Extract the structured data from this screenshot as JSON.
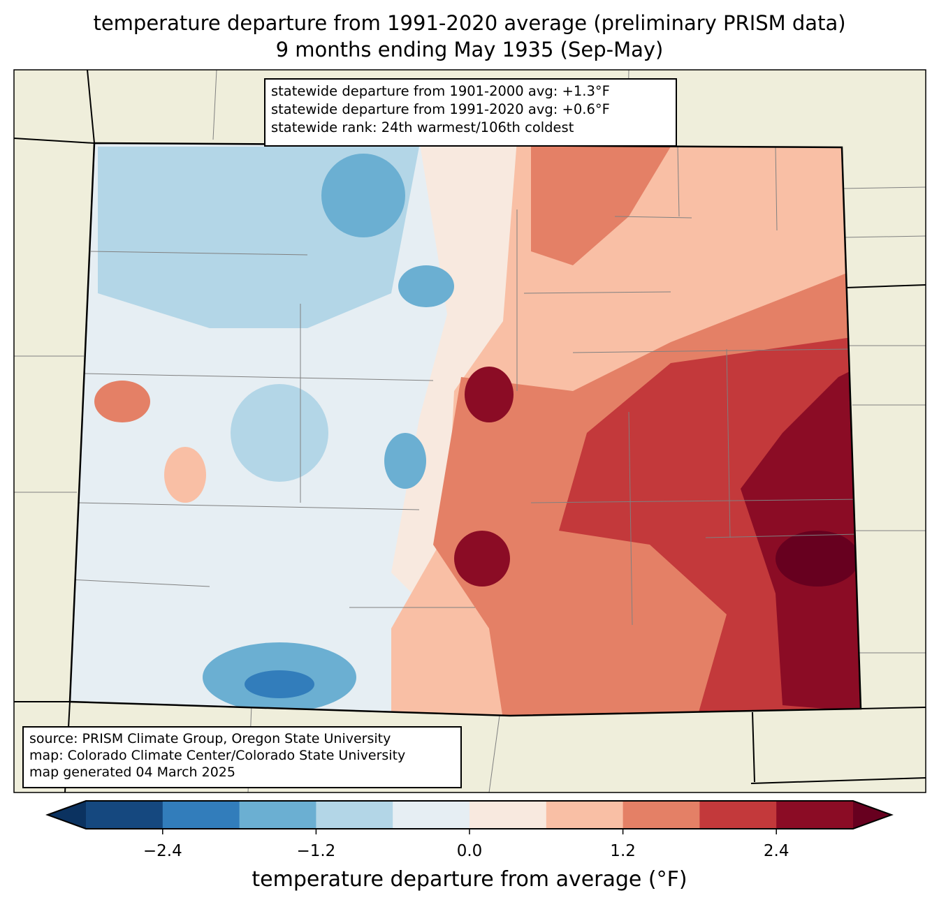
{
  "title": {
    "line1": "temperature departure from 1991-2020 average (preliminary PRISM data)",
    "line2": "9 months ending May 1935 (Sep-May)"
  },
  "info_box": {
    "line1": "statewide departure from 1901-2000 avg: +1.3°F",
    "line2": "statewide departure from 1991-2020 avg: +0.6°F",
    "line3": "statewide rank: 24th warmest/106th coldest"
  },
  "source_box": {
    "line1": "source: PRISM Climate Group, Oregon State University",
    "line2": "map: Colorado Climate Center/Colorado State University",
    "line3": "map generated 04 March 2025"
  },
  "colorbar": {
    "label": "temperature departure from average (°F)",
    "levels": [
      -3.0,
      -2.4,
      -1.8,
      -1.2,
      -0.6,
      0.0,
      0.6,
      1.2,
      1.8,
      2.4,
      3.0
    ],
    "colors": [
      "#0b3260",
      "#15487f",
      "#327dbb",
      "#6bafd2",
      "#b3d6e7",
      "#e6eef3",
      "#f8e9df",
      "#f9bfa5",
      "#e48066",
      "#c3393b",
      "#8b0c25",
      "#67001f"
    ],
    "tick_labels": [
      "−2.4",
      "−1.2",
      "0.0",
      "1.2",
      "2.4"
    ],
    "tick_values": [
      -2.4,
      -1.2,
      0.0,
      1.2,
      2.4
    ]
  },
  "colors": {
    "land": "#efeedb",
    "county_line": "#808080",
    "state_line": "#000000"
  }
}
